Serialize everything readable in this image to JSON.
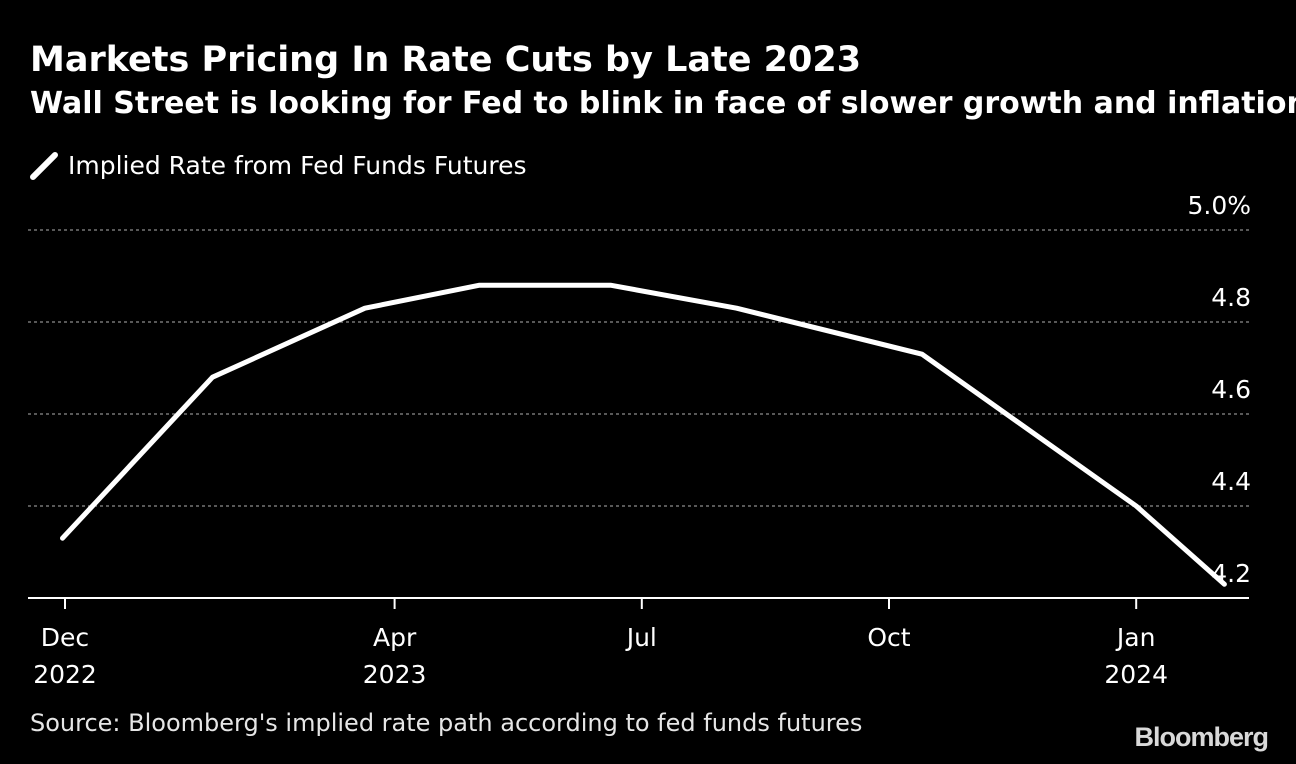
{
  "header": {
    "title": "Markets Pricing In Rate Cuts by Late 2023",
    "subtitle": "Wall Street is looking for Fed to blink in face of slower growth and inflation"
  },
  "legend": {
    "label": "Implied Rate from Fed Funds Futures"
  },
  "footer": {
    "source": "Source: Bloomberg's implied rate path according to fed funds futures",
    "logo": "Bloomberg"
  },
  "colors": {
    "background": "#000000",
    "line": "#ffffff",
    "grid": "#8c8c8c",
    "text": "#ffffff"
  },
  "chart_data": {
    "type": "line",
    "title": "Markets Pricing In Rate Cuts by Late 2023",
    "subtitle": "Wall Street is looking for Fed to blink in face of slower growth and inflation",
    "xlabel": "",
    "ylabel": "",
    "ylim": [
      4.16,
      5.0
    ],
    "grid": true,
    "legend_position": "top-left",
    "y_ticks": [
      {
        "value": 5.0,
        "label": "5.0%"
      },
      {
        "value": 4.8,
        "label": "4.8"
      },
      {
        "value": 4.6,
        "label": "4.6"
      },
      {
        "value": 4.4,
        "label": "4.4"
      },
      {
        "value": 4.2,
        "label": "4.2"
      }
    ],
    "x_ticks": [
      {
        "month_index": 0,
        "line1": "Dec",
        "line2": "2022"
      },
      {
        "month_index": 4,
        "line1": "Apr",
        "line2": "2023"
      },
      {
        "month_index": 7,
        "line1": "Jul",
        "line2": ""
      },
      {
        "month_index": 10,
        "line1": "Oct",
        "line2": ""
      },
      {
        "month_index": 13,
        "line1": "Jan",
        "line2": "2024"
      }
    ],
    "series": [
      {
        "name": "Implied Rate from Fed Funds Futures",
        "x": [
          -0.03,
          1.79,
          3.64,
          5.03,
          6.62,
          8.15,
          10.4,
          13.0,
          14.07
        ],
        "values": [
          4.33,
          4.68,
          4.83,
          4.88,
          4.88,
          4.83,
          4.73,
          4.4,
          4.23
        ]
      }
    ]
  }
}
